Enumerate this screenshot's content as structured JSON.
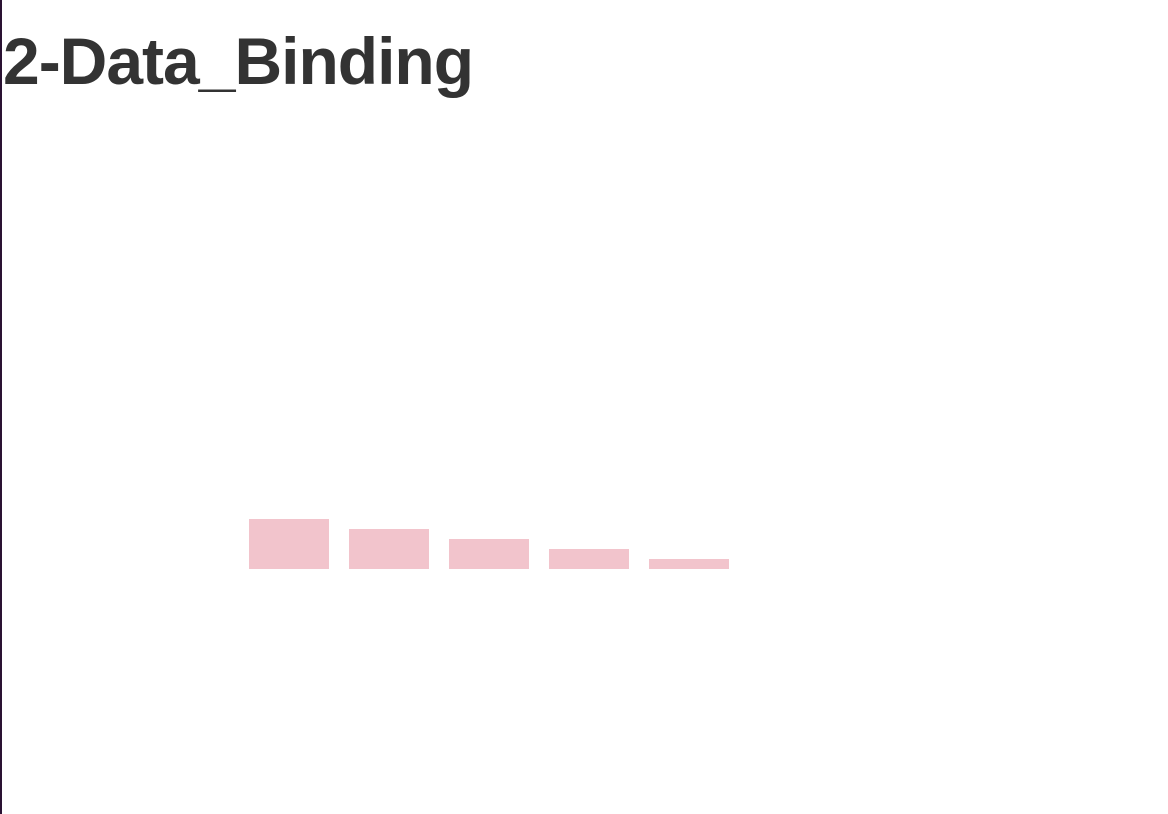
{
  "page": {
    "title": "2-Data_Binding",
    "left_edge_color": "#2a1233"
  },
  "chart_data": {
    "type": "bar",
    "title": "",
    "xlabel": "",
    "ylabel": "",
    "values": [
      5,
      4,
      3,
      2,
      1
    ],
    "bar_color": "#f2c4cc",
    "axes_visible": false,
    "grid": false,
    "legend": "none"
  }
}
